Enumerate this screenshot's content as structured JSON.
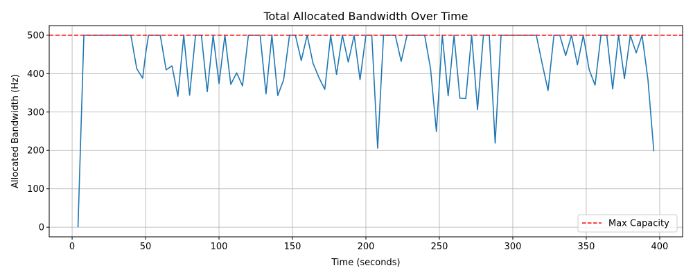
{
  "chart_data": {
    "type": "line",
    "title": "Total Allocated Bandwidth Over Time",
    "xlabel": "Time (seconds)",
    "ylabel": "Allocated Bandwidth (Hz)",
    "xlim": [
      -15.6,
      415.6
    ],
    "ylim": [
      -25,
      525
    ],
    "xticks": [
      0,
      50,
      100,
      150,
      200,
      250,
      300,
      350,
      400
    ],
    "yticks": [
      0,
      100,
      200,
      300,
      400,
      500
    ],
    "grid": true,
    "legend": {
      "position": "lower-right",
      "entries": [
        "Max Capacity"
      ]
    },
    "colors": {
      "series": "#1f77b4",
      "capacity": "#ff0000"
    },
    "series": [
      {
        "x": [
          4,
          8,
          12,
          16,
          20,
          24,
          28,
          32,
          36,
          40,
          44,
          48,
          50,
          52,
          56,
          60,
          64,
          68,
          72,
          76,
          80,
          84,
          88,
          92,
          96,
          100,
          104,
          108,
          112,
          116,
          120,
          124,
          128,
          132,
          136,
          140,
          144,
          148,
          152,
          156,
          160,
          164,
          168,
          172,
          176,
          180,
          184,
          188,
          192,
          196,
          200,
          204,
          208,
          212,
          216,
          220,
          224,
          228,
          232,
          236,
          240,
          244,
          248,
          252,
          256,
          260,
          264,
          268,
          272,
          276,
          280,
          284,
          288,
          292,
          296,
          300,
          304,
          308,
          312,
          316,
          320,
          324,
          328,
          332,
          336,
          340,
          344,
          348,
          352,
          356,
          360,
          364,
          368,
          372,
          376,
          380,
          384,
          388,
          392,
          396
        ],
        "values": [
          0,
          500,
          500,
          500,
          500,
          500,
          500,
          500,
          500,
          500,
          413,
          388,
          450,
          500,
          500,
          500,
          410,
          420,
          341,
          500,
          344,
          500,
          500,
          353,
          500,
          374,
          500,
          372,
          402,
          368,
          500,
          500,
          500,
          347,
          500,
          343,
          384,
          500,
          500,
          434,
          500,
          427,
          390,
          359,
          500,
          398,
          500,
          430,
          500,
          384,
          500,
          500,
          206,
          500,
          500,
          500,
          432,
          500,
          500,
          500,
          500,
          413,
          249,
          500,
          342,
          500,
          336,
          335,
          500,
          306,
          500,
          500,
          219,
          500,
          500,
          500,
          500,
          500,
          500,
          500,
          426,
          356,
          500,
          500,
          447,
          500,
          423,
          500,
          410,
          370,
          500,
          500,
          360,
          500,
          387,
          500,
          454,
          500,
          385,
          198
        ]
      },
      {
        "name": "Max Capacity",
        "style": "dashed",
        "y": 500
      }
    ]
  }
}
